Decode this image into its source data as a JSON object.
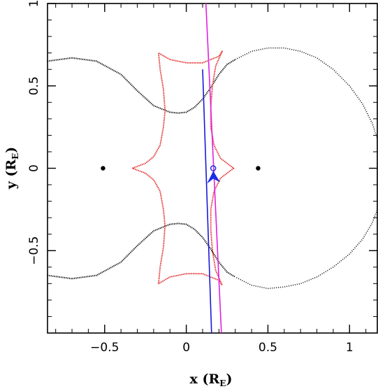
{
  "chart_data": {
    "type": "line",
    "title": "",
    "xlabel": "x (R",
    "xlabel_sub": "E",
    "xlabel_close": ")",
    "ylabel": "y (R",
    "ylabel_sub": "E",
    "ylabel_close": ")",
    "xlim": [
      -0.85,
      1.17
    ],
    "ylim": [
      -1.0,
      1.0
    ],
    "x_ticks": [
      -0.5,
      0,
      0.5,
      1
    ],
    "x_tick_labels": [
      "−0.5",
      "0",
      "0.5",
      "1"
    ],
    "y_ticks": [
      -0.5,
      0,
      0.5,
      1
    ],
    "y_tick_labels": [
      "−0.5",
      "0",
      "0.5",
      "1"
    ],
    "grid": false,
    "lenses": [
      {
        "x": -0.51,
        "y": 0.0
      },
      {
        "x": 0.44,
        "y": 0.0
      }
    ],
    "critical_curve_upper_left": [
      [
        -0.85,
        0.65
      ],
      [
        -0.7,
        0.67
      ],
      [
        -0.55,
        0.65
      ],
      [
        -0.4,
        0.57
      ],
      [
        -0.3,
        0.47
      ],
      [
        -0.2,
        0.38
      ],
      [
        -0.1,
        0.34
      ],
      [
        -0.05,
        0.335
      ],
      [
        0.0,
        0.34
      ],
      [
        0.05,
        0.37
      ],
      [
        0.1,
        0.42
      ],
      [
        0.15,
        0.49
      ],
      [
        0.2,
        0.57
      ],
      [
        0.25,
        0.63
      ],
      [
        0.3,
        0.66
      ]
    ],
    "critical_curve_lower_left": [
      [
        -0.85,
        -0.65
      ],
      [
        -0.7,
        -0.67
      ],
      [
        -0.55,
        -0.65
      ],
      [
        -0.4,
        -0.57
      ],
      [
        -0.3,
        -0.47
      ],
      [
        -0.2,
        -0.38
      ],
      [
        -0.1,
        -0.34
      ],
      [
        -0.05,
        -0.335
      ],
      [
        0.0,
        -0.34
      ],
      [
        0.05,
        -0.37
      ],
      [
        0.1,
        -0.42
      ],
      [
        0.15,
        -0.49
      ],
      [
        0.2,
        -0.57
      ],
      [
        0.25,
        -0.63
      ],
      [
        0.3,
        -0.66
      ]
    ],
    "critical_curve_right": [
      [
        0.3,
        0.66
      ],
      [
        0.4,
        0.71
      ],
      [
        0.5,
        0.73
      ],
      [
        0.6,
        0.73
      ],
      [
        0.7,
        0.71
      ],
      [
        0.8,
        0.67
      ],
      [
        0.9,
        0.6
      ],
      [
        1.0,
        0.5
      ],
      [
        1.08,
        0.39
      ],
      [
        1.14,
        0.27
      ],
      [
        1.17,
        0.18
      ],
      [
        1.17,
        -0.25
      ],
      [
        1.14,
        -0.33
      ],
      [
        1.08,
        -0.43
      ],
      [
        1.0,
        -0.52
      ],
      [
        0.9,
        -0.6
      ],
      [
        0.8,
        -0.66
      ],
      [
        0.7,
        -0.7
      ],
      [
        0.6,
        -0.72
      ],
      [
        0.5,
        -0.73
      ],
      [
        0.4,
        -0.71
      ],
      [
        0.3,
        -0.66
      ]
    ],
    "caustic": [
      [
        -0.33,
        0.0
      ],
      [
        -0.25,
        0.03
      ],
      [
        -0.2,
        0.07
      ],
      [
        -0.16,
        0.14
      ],
      [
        -0.14,
        0.25
      ],
      [
        -0.13,
        0.35
      ],
      [
        -0.14,
        0.48
      ],
      [
        -0.16,
        0.6
      ],
      [
        -0.17,
        0.7
      ],
      [
        -0.1,
        0.66
      ],
      [
        0.0,
        0.64
      ],
      [
        0.1,
        0.64
      ],
      [
        0.2,
        0.68
      ],
      [
        0.22,
        0.71
      ],
      [
        0.18,
        0.62
      ],
      [
        0.16,
        0.5
      ],
      [
        0.15,
        0.37
      ],
      [
        0.15,
        0.25
      ],
      [
        0.17,
        0.14
      ],
      [
        0.21,
        0.06
      ],
      [
        0.29,
        0.0
      ],
      [
        0.21,
        -0.06
      ],
      [
        0.17,
        -0.14
      ],
      [
        0.15,
        -0.25
      ],
      [
        0.15,
        -0.37
      ],
      [
        0.16,
        -0.5
      ],
      [
        0.18,
        -0.62
      ],
      [
        0.22,
        -0.71
      ],
      [
        0.2,
        -0.68
      ],
      [
        0.1,
        -0.64
      ],
      [
        0.0,
        -0.64
      ],
      [
        -0.1,
        -0.66
      ],
      [
        -0.17,
        -0.7
      ],
      [
        -0.16,
        -0.6
      ],
      [
        -0.14,
        -0.48
      ],
      [
        -0.13,
        -0.35
      ],
      [
        -0.14,
        -0.25
      ],
      [
        -0.16,
        -0.14
      ],
      [
        -0.2,
        -0.07
      ],
      [
        -0.25,
        -0.03
      ],
      [
        -0.33,
        0.0
      ]
    ],
    "source_trajectory_magenta": [
      [
        0.12,
        1.0
      ],
      [
        0.215,
        -1.0
      ]
    ],
    "source_trajectory_blue": [
      [
        0.1,
        0.6
      ],
      [
        0.155,
        -1.0
      ]
    ],
    "source_position": {
      "x": 0.165,
      "y": 0.0
    },
    "colors": {
      "critical_curve": "#000000",
      "caustic": "#e02020",
      "trajectory_magenta": "#e020e0",
      "trajectory_blue": "#1818d8",
      "source": "#1a2ee8"
    }
  }
}
